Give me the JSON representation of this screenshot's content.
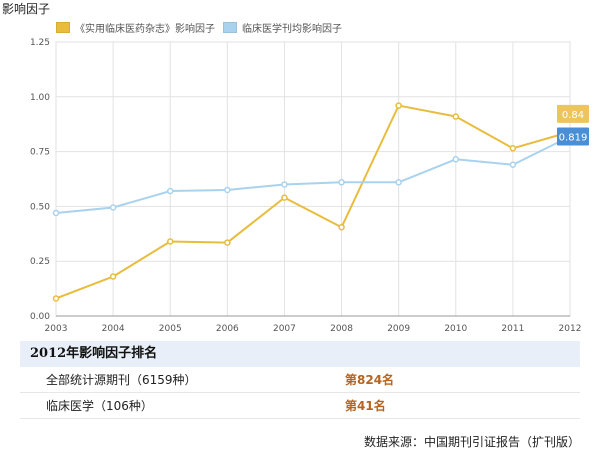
{
  "chart_data": {
    "type": "line",
    "title": "影响因子",
    "x": [
      "2003",
      "2004",
      "2005",
      "2006",
      "2007",
      "2008",
      "2009",
      "2010",
      "2011",
      "2012"
    ],
    "ylim": [
      0,
      1.25
    ],
    "yticks": [
      "0.00",
      "0.25",
      "0.50",
      "0.75",
      "1.00",
      "1.25"
    ],
    "grid": true,
    "legend_position": "top-left",
    "series": [
      {
        "name": "《实用临床医药杂志》影响因子",
        "color": "#e8bc3c",
        "values": [
          0.08,
          0.18,
          0.34,
          0.335,
          0.54,
          0.405,
          0.96,
          0.91,
          0.765,
          0.84
        ],
        "end_label": "0.84",
        "end_label_color": "#ecc55f"
      },
      {
        "name": "临床医学刊均影响因子",
        "color": "#a9d2ee",
        "values": [
          0.47,
          0.495,
          0.57,
          0.575,
          0.6,
          0.61,
          0.61,
          0.715,
          0.69,
          0.819
        ],
        "end_label": "0.819",
        "end_label_color": "#4a8fd6"
      }
    ]
  },
  "ranking": {
    "title": "2012年影响因子排名",
    "rows": [
      {
        "label": "全部统计源期刊（6159种）",
        "value": "第824名"
      },
      {
        "label": "临床医学（106种）",
        "value": "第41名"
      }
    ]
  },
  "source": "数据来源：中国期刊引证报告（扩刊版）"
}
